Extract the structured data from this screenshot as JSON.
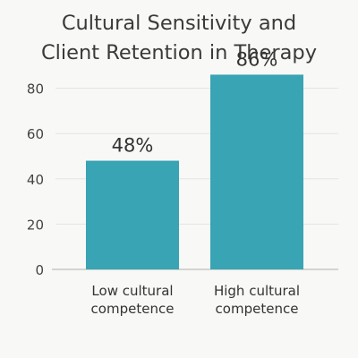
{
  "chart_data": {
    "type": "bar",
    "title_lines": [
      "Cultural Sensitivity and",
      "Client Retention in Therapy"
    ],
    "categories": [
      [
        "Low cultural",
        "competence"
      ],
      [
        "High cultural",
        "competence"
      ]
    ],
    "values": [
      48,
      86
    ],
    "value_labels": [
      "48%",
      "86%"
    ],
    "bar_color": "#39a4b3",
    "yticks": [
      0,
      20,
      40,
      60,
      80
    ],
    "ylim": [
      0,
      86
    ],
    "grid": true,
    "xlabel": "",
    "ylabel": ""
  }
}
